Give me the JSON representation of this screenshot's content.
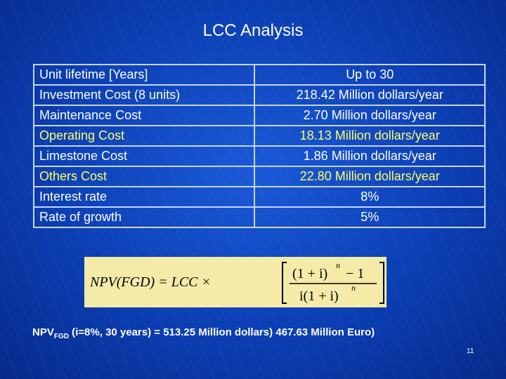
{
  "title": "LCC Analysis",
  "table": {
    "rows": [
      {
        "cells": [
          "Unit lifetime [Years]",
          "Up to 30"
        ],
        "color": "#ffffff"
      },
      {
        "cells": [
          "Investment Cost (8 units)",
          "218.42 Million dollars/year"
        ],
        "color": "#ffffff"
      },
      {
        "cells": [
          "Maintenance Cost",
          "2.70 Million dollars/year"
        ],
        "color": "#ffffff"
      },
      {
        "cells": [
          "Operating Cost",
          "18.13 Million dollars/year"
        ],
        "color": "#ffff66"
      },
      {
        "cells": [
          "Limestone Cost",
          "1.86 Million dollars/year"
        ],
        "color": "#ffffff"
      },
      {
        "cells": [
          "Others Cost",
          "22.80 Million dollars/year"
        ],
        "color": "#ffff66"
      },
      {
        "cells": [
          "Interest rate",
          "8%"
        ],
        "color": "#ffffff"
      },
      {
        "cells": [
          "Rate of growth",
          "5%"
        ],
        "color": "#ffffff"
      }
    ]
  },
  "formula": {
    "lhs": "NPV(FGD) = LCC ×",
    "numerator": "(1 + i)",
    "numerator_exponent": "n",
    "numerator_tail": "− 1",
    "denominator": "i(1 + i)",
    "denominator_exponent": "n"
  },
  "footer": {
    "prefix": "NPV",
    "subscript": "FGD",
    "text": " (i=8%, 30 years) = 513.25 Million dollars) 467.63 Million Euro)"
  },
  "page_number": "11"
}
